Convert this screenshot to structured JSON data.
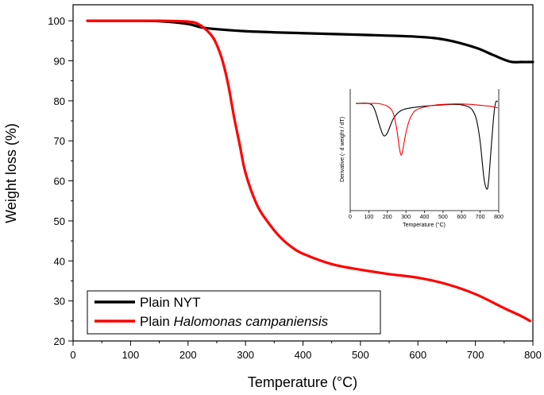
{
  "chart_data": [
    {
      "type": "line",
      "xlabel": "Temperature (°C)",
      "ylabel": "Weight loss (%)",
      "xlim": [
        0,
        800
      ],
      "ylim": [
        20,
        104
      ],
      "xticks": [
        "0",
        "100",
        "200",
        "300",
        "400",
        "500",
        "600",
        "700",
        "800"
      ],
      "yticks": [
        "20",
        "30",
        "40",
        "50",
        "60",
        "70",
        "80",
        "90",
        "100"
      ],
      "grid": false,
      "legend_position": "bottom-left",
      "series": [
        {
          "name": "Plain NYT",
          "color": "#000000",
          "x": [
            25,
            100,
            150,
            200,
            230,
            300,
            400,
            500,
            600,
            650,
            700,
            730,
            760,
            780,
            800
          ],
          "y": [
            100,
            100,
            99.9,
            99.2,
            98.2,
            97.4,
            96.9,
            96.5,
            96.0,
            95.2,
            93.3,
            91.5,
            89.8,
            89.7,
            89.7
          ]
        },
        {
          "name_prefix": "Plain ",
          "name_italic": "Halomonas campaniensis",
          "color": "#ff0000",
          "x": [
            25,
            100,
            150,
            200,
            220,
            240,
            250,
            260,
            270,
            280,
            290,
            300,
            320,
            340,
            360,
            380,
            400,
            450,
            500,
            550,
            600,
            650,
            700,
            750,
            780,
            795
          ],
          "y": [
            100,
            100,
            100,
            99.8,
            99.0,
            96.5,
            94,
            90,
            84,
            76,
            69,
            62,
            54,
            49.5,
            46,
            43.5,
            41.8,
            39.2,
            37.8,
            36.7,
            35.8,
            34.2,
            31.7,
            28.2,
            26.2,
            25
          ]
        }
      ]
    },
    {
      "type": "line",
      "xlabel": "Temperature (°C)",
      "ylabel": "Derivative (- d weight / dT)",
      "xlim": [
        0,
        800
      ],
      "xticks": [
        "0",
        "100",
        "200",
        "300",
        "400",
        "500",
        "600",
        "700",
        "800"
      ],
      "grid": false,
      "series": [
        {
          "color": "#000000",
          "x": [
            30,
            100,
            130,
            160,
            180,
            200,
            230,
            260,
            300,
            400,
            500,
            550,
            600,
            640,
            660,
            680,
            700,
            720,
            735,
            745,
            760,
            775,
            785,
            795
          ],
          "y": [
            0.02,
            0.02,
            0.08,
            0.28,
            0.38,
            0.35,
            0.2,
            0.12,
            0.08,
            0.05,
            0.035,
            0.03,
            0.035,
            0.06,
            0.1,
            0.2,
            0.45,
            0.85,
            0.98,
            0.9,
            0.5,
            0.12,
            0.0,
            0.0
          ]
        },
        {
          "color": "#ff0000",
          "x": [
            30,
            100,
            150,
            200,
            230,
            250,
            265,
            275,
            285,
            300,
            320,
            350,
            400,
            450,
            500,
            550,
            600,
            650,
            700,
            750,
            795
          ],
          "y": [
            0.02,
            0.02,
            0.02,
            0.05,
            0.12,
            0.3,
            0.52,
            0.6,
            0.52,
            0.35,
            0.2,
            0.1,
            0.06,
            0.04,
            0.03,
            0.025,
            0.025,
            0.03,
            0.04,
            0.05,
            0.07
          ]
        }
      ]
    }
  ]
}
